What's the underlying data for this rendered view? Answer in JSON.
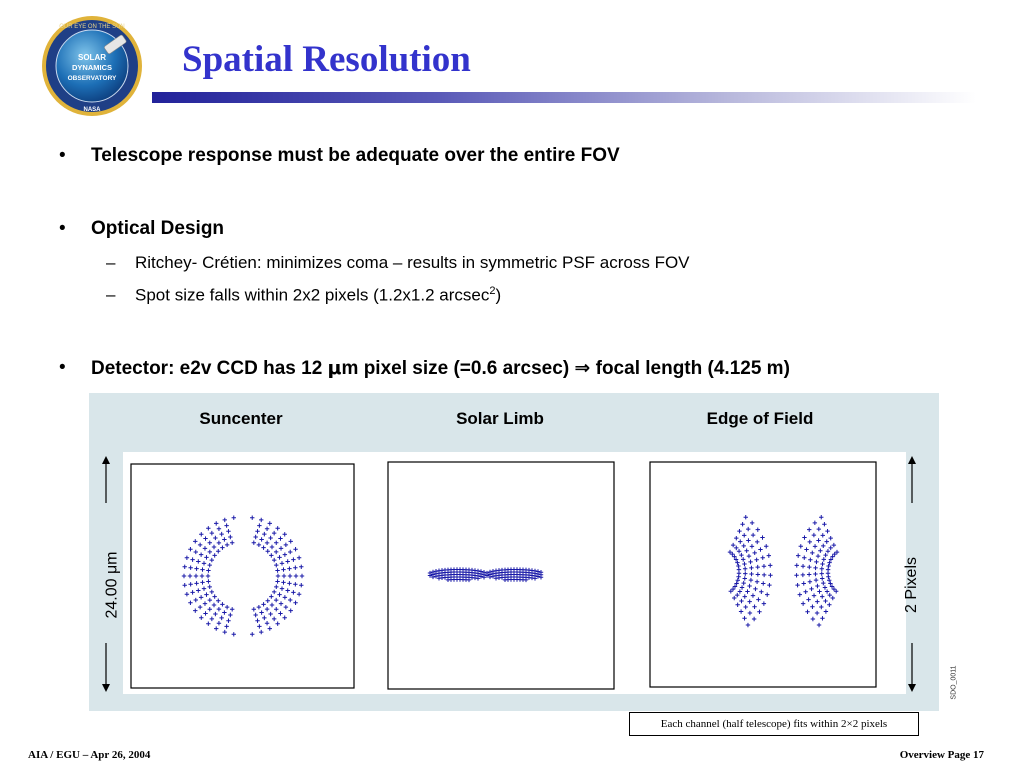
{
  "logo": {
    "text_top": "OUR EYE ON THE SUN",
    "line1": "SOLAR",
    "line2": "DYNAMICS",
    "line3": "OBSERVATORY",
    "text_bottom": "NASA"
  },
  "title": "Spatial Resolution",
  "bullets": [
    {
      "text": "Telescope response must be adequate over the entire FOV",
      "subs": []
    },
    {
      "text": "Optical Design",
      "subs": [
        {
          "text": "Ritchey- Crétien:  minimizes coma – results in symmetric PSF across FOV"
        },
        {
          "text": "Spot size falls within 2x2 pixels (1.2x1.2 arcsec",
          "sup": "2",
          "after": ")"
        }
      ]
    },
    {
      "text_a": "Detector: e2v CCD has 12 ",
      "mu": "μ",
      "text_b": "m pixel size (=0.6 arcsec) ",
      "arrow": "⇒",
      "text_c": " focal length (4.125 m)"
    }
  ],
  "figure": {
    "labels": [
      "Suncenter",
      "Solar Limb",
      "Edge of Field"
    ],
    "left_dimension": "24.00 μm",
    "right_dimension": "2 Pixels",
    "id_code": "SDO_0011",
    "caption": "Each channel (half telescope) fits within 2×2 pixels",
    "spot_color": "#1a1aa8"
  },
  "footer": {
    "left": "AIA / EGU – Apr 26, 2004",
    "right": "Overview Page 17"
  }
}
